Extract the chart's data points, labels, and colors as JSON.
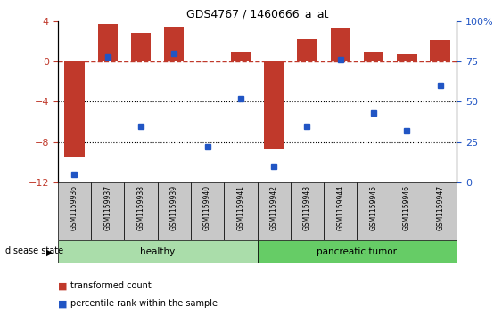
{
  "title": "GDS4767 / 1460666_a_at",
  "samples": [
    "GSM1159936",
    "GSM1159937",
    "GSM1159938",
    "GSM1159939",
    "GSM1159940",
    "GSM1159941",
    "GSM1159942",
    "GSM1159943",
    "GSM1159944",
    "GSM1159945",
    "GSM1159946",
    "GSM1159947"
  ],
  "bar_values": [
    -9.5,
    3.7,
    2.8,
    3.4,
    0.1,
    0.9,
    -8.7,
    2.2,
    3.3,
    0.9,
    0.7,
    2.1
  ],
  "percentile_values": [
    5,
    78,
    35,
    80,
    22,
    52,
    10,
    35,
    76,
    43,
    32,
    60
  ],
  "bar_color": "#c0392b",
  "dot_color": "#2155c4",
  "ylim_left": [
    -12,
    4
  ],
  "ylim_right": [
    0,
    100
  ],
  "yticks_left": [
    4,
    0,
    -4,
    -8,
    -12
  ],
  "yticks_right": [
    100,
    75,
    50,
    25,
    0
  ],
  "ytick_labels_right": [
    "100%",
    "75",
    "50",
    "25",
    "0"
  ],
  "dotted_lines": [
    -4,
    -8
  ],
  "healthy_indices": [
    0,
    1,
    2,
    3,
    4,
    5
  ],
  "tumor_indices": [
    6,
    7,
    8,
    9,
    10,
    11
  ],
  "healthy_color": "#aaddaa",
  "tumor_color": "#66cc66",
  "group_label_healthy": "healthy",
  "group_label_tumor": "pancreatic tumor",
  "disease_state_label": "disease state",
  "legend_bar_label": "transformed count",
  "legend_dot_label": "percentile rank within the sample",
  "tick_box_color": "#c8c8c8"
}
